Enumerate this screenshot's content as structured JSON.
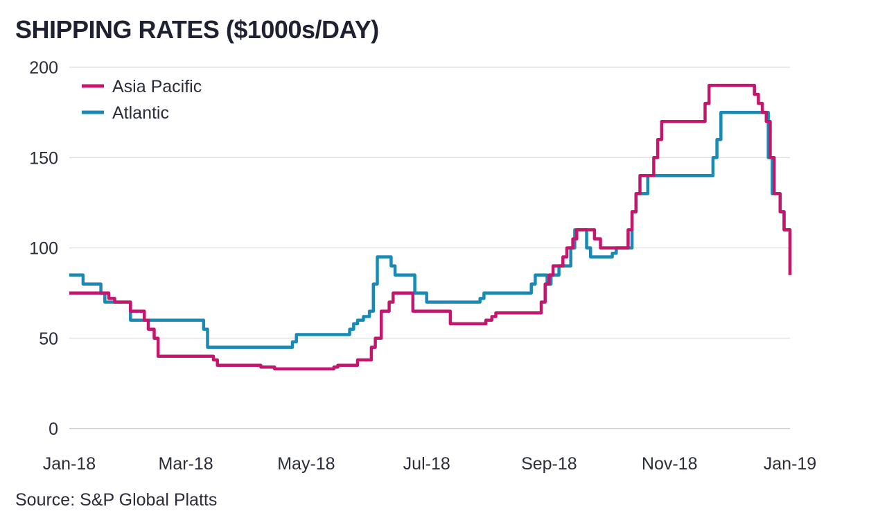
{
  "chart_data": {
    "type": "line",
    "title": "SHIPPING RATES ($1000s/DAY)",
    "source": "Source: S&P Global Platts",
    "xlabel": "",
    "ylabel": "",
    "ylim": [
      0,
      200
    ],
    "yticks": [
      0,
      50,
      100,
      150,
      200
    ],
    "xlim": [
      "2018-01-01",
      "2019-01-01"
    ],
    "xticks": [
      {
        "date": "2018-01-01",
        "label": "Jan-18"
      },
      {
        "date": "2018-03-01",
        "label": "Mar-18"
      },
      {
        "date": "2018-05-01",
        "label": "May-18"
      },
      {
        "date": "2018-07-01",
        "label": "Jul-18"
      },
      {
        "date": "2018-09-01",
        "label": "Sep-18"
      },
      {
        "date": "2018-11-01",
        "label": "Nov-18"
      },
      {
        "date": "2019-01-01",
        "label": "Jan-19"
      }
    ],
    "grid": true,
    "legend_position": "top-left",
    "series": [
      {
        "name": "Asia Pacific",
        "color": "#c5166e",
        "step": true,
        "points": [
          [
            "2018-01-01",
            75
          ],
          [
            "2018-01-21",
            72
          ],
          [
            "2018-01-24",
            70
          ],
          [
            "2018-02-01",
            65
          ],
          [
            "2018-02-08",
            60
          ],
          [
            "2018-02-10",
            55
          ],
          [
            "2018-02-13",
            50
          ],
          [
            "2018-02-15",
            40
          ],
          [
            "2018-03-15",
            38
          ],
          [
            "2018-03-17",
            35
          ],
          [
            "2018-04-08",
            34
          ],
          [
            "2018-04-15",
            33
          ],
          [
            "2018-05-15",
            34
          ],
          [
            "2018-05-17",
            35
          ],
          [
            "2018-05-27",
            38
          ],
          [
            "2018-06-03",
            45
          ],
          [
            "2018-06-05",
            50
          ],
          [
            "2018-06-08",
            65
          ],
          [
            "2018-06-12",
            70
          ],
          [
            "2018-06-14",
            75
          ],
          [
            "2018-06-24",
            65
          ],
          [
            "2018-07-13",
            58
          ],
          [
            "2018-07-31",
            60
          ],
          [
            "2018-08-03",
            62
          ],
          [
            "2018-08-05",
            64
          ],
          [
            "2018-08-28",
            70
          ],
          [
            "2018-08-30",
            80
          ],
          [
            "2018-09-01",
            85
          ],
          [
            "2018-09-03",
            90
          ],
          [
            "2018-09-08",
            95
          ],
          [
            "2018-09-10",
            100
          ],
          [
            "2018-09-13",
            105
          ],
          [
            "2018-09-15",
            110
          ],
          [
            "2018-09-24",
            105
          ],
          [
            "2018-09-27",
            100
          ],
          [
            "2018-10-11",
            110
          ],
          [
            "2018-10-13",
            120
          ],
          [
            "2018-10-15",
            130
          ],
          [
            "2018-10-17",
            140
          ],
          [
            "2018-10-24",
            150
          ],
          [
            "2018-10-26",
            160
          ],
          [
            "2018-10-28",
            170
          ],
          [
            "2018-11-19",
            180
          ],
          [
            "2018-11-21",
            190
          ],
          [
            "2018-12-14",
            185
          ],
          [
            "2018-12-16",
            180
          ],
          [
            "2018-12-18",
            175
          ],
          [
            "2018-12-20",
            170
          ],
          [
            "2018-12-22",
            150
          ],
          [
            "2018-12-24",
            130
          ],
          [
            "2018-12-27",
            120
          ],
          [
            "2018-12-29",
            110
          ],
          [
            "2019-01-09",
            95
          ],
          [
            "2019-01-11",
            85
          ],
          [
            "2019-01-20",
            85
          ]
        ]
      },
      {
        "name": "Atlantic",
        "color": "#1a8ab5",
        "step": true,
        "points": [
          [
            "2018-01-01",
            85
          ],
          [
            "2018-01-08",
            80
          ],
          [
            "2018-01-17",
            75
          ],
          [
            "2018-01-19",
            70
          ],
          [
            "2018-02-01",
            60
          ],
          [
            "2018-02-12",
            60
          ],
          [
            "2018-03-10",
            55
          ],
          [
            "2018-03-12",
            45
          ],
          [
            "2018-04-24",
            48
          ],
          [
            "2018-04-26",
            52
          ],
          [
            "2018-05-23",
            55
          ],
          [
            "2018-05-25",
            58
          ],
          [
            "2018-05-27",
            60
          ],
          [
            "2018-05-30",
            62
          ],
          [
            "2018-06-02",
            65
          ],
          [
            "2018-06-04",
            80
          ],
          [
            "2018-06-06",
            95
          ],
          [
            "2018-06-13",
            90
          ],
          [
            "2018-06-15",
            85
          ],
          [
            "2018-06-25",
            75
          ],
          [
            "2018-07-01",
            70
          ],
          [
            "2018-07-28",
            72
          ],
          [
            "2018-07-30",
            75
          ],
          [
            "2018-08-23",
            80
          ],
          [
            "2018-08-25",
            85
          ],
          [
            "2018-08-31",
            80
          ],
          [
            "2018-09-02",
            85
          ],
          [
            "2018-09-06",
            90
          ],
          [
            "2018-09-12",
            100
          ],
          [
            "2018-09-14",
            110
          ],
          [
            "2018-09-20",
            100
          ],
          [
            "2018-09-22",
            95
          ],
          [
            "2018-10-03",
            97
          ],
          [
            "2018-10-05",
            100
          ],
          [
            "2018-10-13",
            120
          ],
          [
            "2018-10-15",
            130
          ],
          [
            "2018-10-21",
            140
          ],
          [
            "2018-11-23",
            150
          ],
          [
            "2018-11-25",
            160
          ],
          [
            "2018-11-27",
            175
          ],
          [
            "2018-12-19",
            175
          ],
          [
            "2018-12-21",
            150
          ],
          [
            "2018-12-23",
            130
          ],
          [
            "2018-12-27",
            120
          ],
          [
            "2018-12-29",
            110
          ],
          [
            "2019-01-15",
            100
          ],
          [
            "2019-01-17",
            85
          ],
          [
            "2019-01-20",
            85
          ]
        ]
      }
    ]
  }
}
